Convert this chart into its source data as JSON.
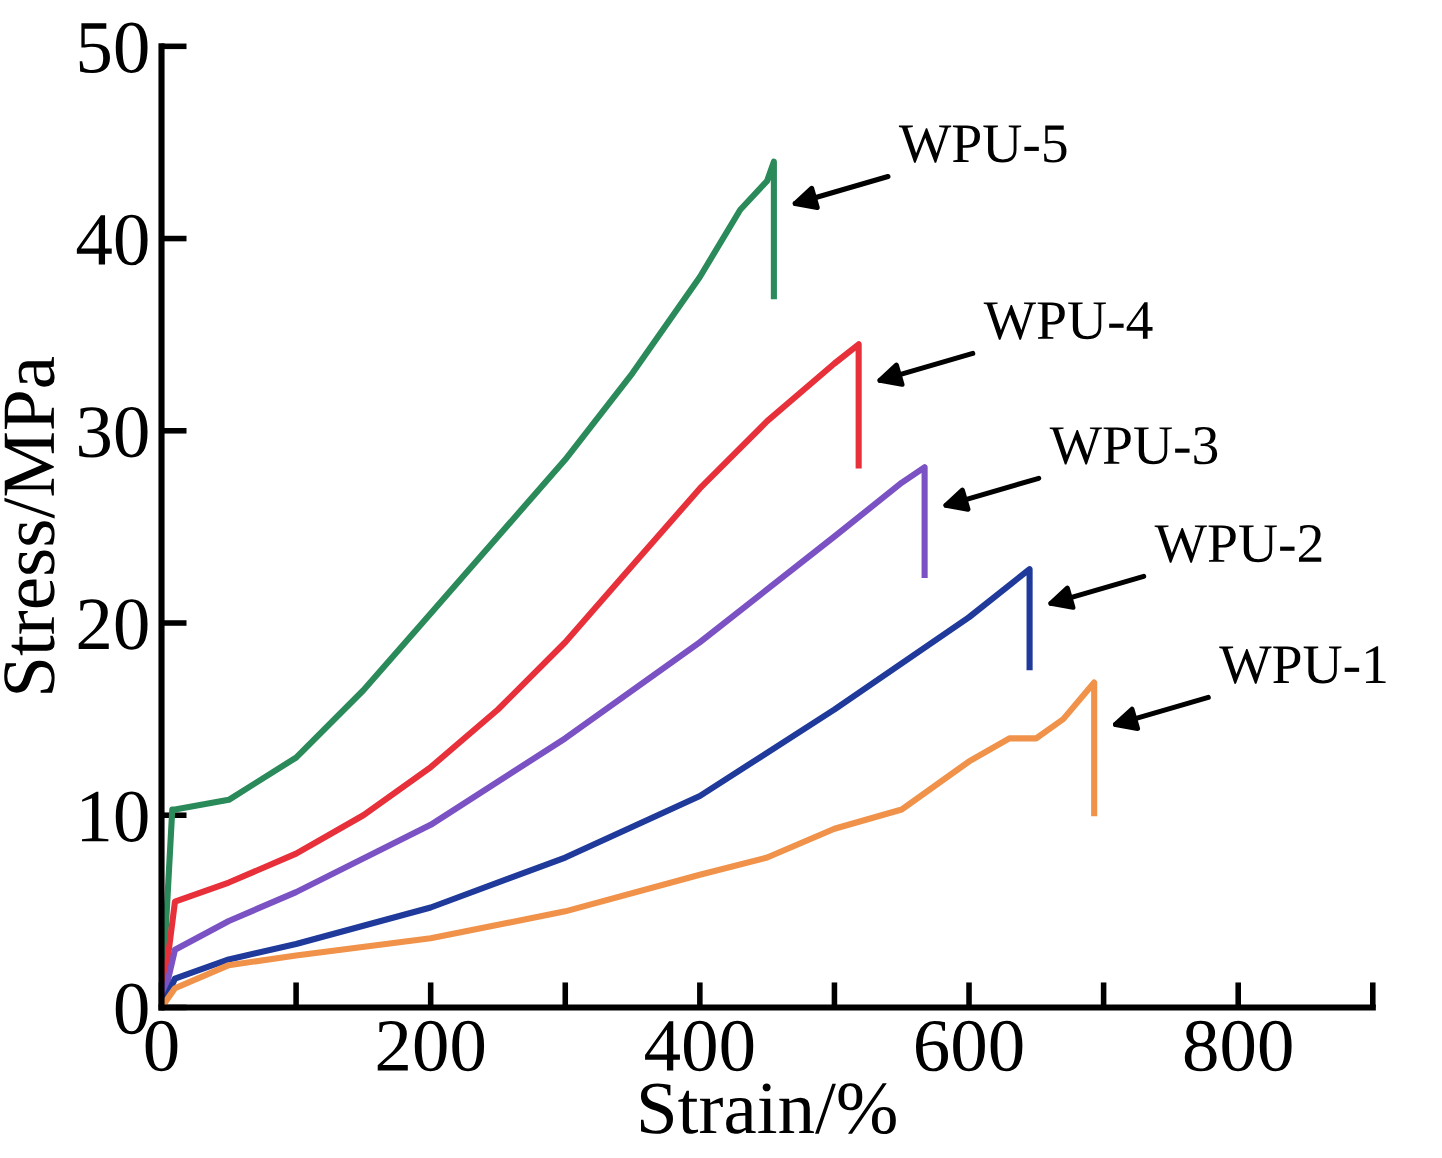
{
  "chart_data": {
    "type": "line",
    "xlabel": "Strain/%",
    "ylabel": "Stress/MPa",
    "xlim": [
      0,
      900
    ],
    "ylim": [
      0,
      50
    ],
    "xticks": [
      0,
      {
        "value": 100,
        "label": null
      },
      200,
      {
        "value": 300,
        "label": null
      },
      400,
      {
        "value": 500,
        "label": null
      },
      600,
      {
        "value": 700,
        "label": null
      },
      800,
      {
        "value": 900,
        "label": null
      }
    ],
    "yticks": [
      0,
      10,
      20,
      30,
      40,
      50
    ],
    "grid": false,
    "legend": false,
    "marker": "none",
    "line_style": "solid",
    "series": [
      {
        "color": "#2a8a5a",
        "x": [
          0,
          8,
          10,
          50,
          100,
          150,
          200,
          250,
          300,
          350,
          400,
          430,
          450,
          455,
          455
        ],
        "values": [
          0,
          10.3,
          10.3,
          10.8,
          13,
          16.5,
          20.5,
          24.5,
          28.5,
          33,
          38,
          41.5,
          43,
          44,
          37
        ]
      },
      {
        "color": "#e8303a",
        "x": [
          0,
          10,
          50,
          100,
          150,
          200,
          250,
          300,
          350,
          400,
          450,
          500,
          518,
          518
        ],
        "values": [
          0,
          5.5,
          6.5,
          8,
          10,
          12.5,
          15.5,
          19,
          23,
          27,
          30.5,
          33.5,
          34.5,
          28.2
        ]
      },
      {
        "color": "#7b52c4",
        "x": [
          0,
          10,
          50,
          100,
          200,
          300,
          400,
          500,
          550,
          567,
          567
        ],
        "values": [
          0,
          3,
          4.5,
          6,
          9.5,
          14,
          19,
          24.5,
          27.3,
          28.1,
          22.5
        ]
      },
      {
        "color": "#1f3a9a",
        "x": [
          0,
          10,
          50,
          100,
          200,
          300,
          400,
          500,
          600,
          645,
          645
        ],
        "values": [
          0,
          1.5,
          2.5,
          3.3,
          5.2,
          7.8,
          11,
          15.5,
          20.3,
          22.8,
          17.7
        ]
      },
      {
        "color": "#f0924a",
        "x": [
          0,
          10,
          50,
          100,
          200,
          300,
          400,
          450,
          500,
          550,
          600,
          630,
          650,
          670,
          693,
          693
        ],
        "values": [
          0,
          1,
          2.2,
          2.7,
          3.6,
          5,
          6.9,
          7.8,
          9.3,
          10.3,
          12.8,
          14,
          14,
          15,
          16.9,
          10.1
        ]
      }
    ],
    "annotations": [
      {
        "text": "WPU-5",
        "x": 455,
        "y": 41.5
      },
      {
        "text": "WPU-4",
        "x": 518,
        "y": 32.3
      },
      {
        "text": "WPU-3",
        "x": 567,
        "y": 25.8
      },
      {
        "text": "WPU-2",
        "x": 645,
        "y": 20.7
      },
      {
        "text": "WPU-1",
        "x": 693,
        "y": 14.4
      }
    ]
  }
}
